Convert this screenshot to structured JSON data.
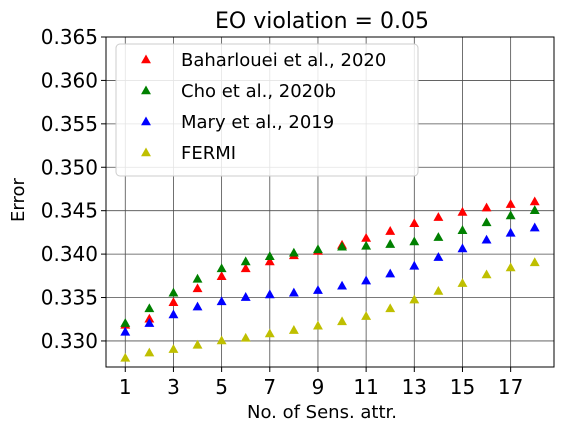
{
  "chart_data": {
    "type": "scatter",
    "title": "EO violation = 0.05",
    "xlabel": "No. of Sens. attr.",
    "ylabel": "Error",
    "xlim": [
      0.2,
      18.8
    ],
    "ylim": [
      0.327,
      0.365
    ],
    "xticks": [
      1,
      3,
      5,
      7,
      9,
      11,
      13,
      15,
      17
    ],
    "yticks": [
      0.33,
      0.335,
      0.34,
      0.345,
      0.35,
      0.355,
      0.36,
      0.365
    ],
    "ytick_labels": [
      "0.330",
      "0.335",
      "0.340",
      "0.345",
      "0.350",
      "0.355",
      "0.360",
      "0.365"
    ],
    "grid": true,
    "legend_position": "upper-left",
    "marker": "triangle",
    "x": [
      1,
      2,
      3,
      4,
      5,
      6,
      7,
      8,
      9,
      10,
      11,
      12,
      13,
      14,
      15,
      16,
      17,
      18
    ],
    "series": [
      {
        "name": "Baharlouei et al., 2020",
        "color": "#ff0000",
        "values": [
          0.3318,
          0.3325,
          0.3344,
          0.336,
          0.3374,
          0.3383,
          0.3391,
          0.3398,
          0.3403,
          0.341,
          0.3418,
          0.3426,
          0.3435,
          0.3442,
          0.3448,
          0.3453,
          0.3457,
          0.346
        ]
      },
      {
        "name": "Cho et al., 2020b",
        "color": "#008000",
        "values": [
          0.332,
          0.3337,
          0.3355,
          0.3371,
          0.3383,
          0.3391,
          0.3397,
          0.3401,
          0.3405,
          0.3408,
          0.3409,
          0.3411,
          0.3414,
          0.3419,
          0.3427,
          0.3436,
          0.3444,
          0.345
        ]
      },
      {
        "name": "Mary et al., 2019",
        "color": "#0000ff",
        "values": [
          0.331,
          0.332,
          0.333,
          0.3339,
          0.3345,
          0.335,
          0.3353,
          0.3355,
          0.3358,
          0.3363,
          0.3369,
          0.3377,
          0.3386,
          0.3396,
          0.3406,
          0.3416,
          0.3424,
          0.343
        ]
      },
      {
        "name": "FERMI",
        "color": "#bfbf00",
        "values": [
          0.328,
          0.3286,
          0.329,
          0.3295,
          0.33,
          0.3303,
          0.3308,
          0.3312,
          0.3317,
          0.3322,
          0.3328,
          0.3337,
          0.3347,
          0.3357,
          0.3366,
          0.3376,
          0.3384,
          0.339
        ]
      }
    ]
  }
}
